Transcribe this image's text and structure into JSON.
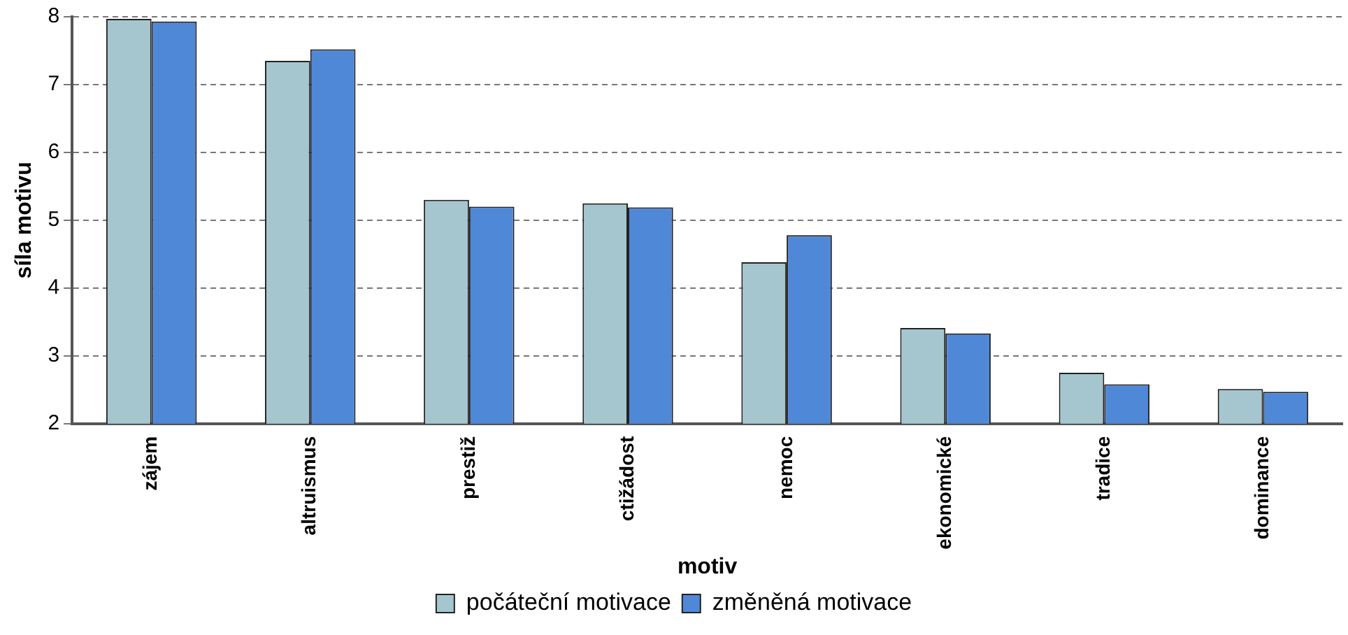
{
  "chart_data": {
    "type": "bar",
    "xlabel": "motiv",
    "ylabel": "síla motivu",
    "categories": [
      "zájem",
      "altruismus",
      "prestiž",
      "ctižádost",
      "nemoc",
      "ekonomické",
      "tradice",
      "dominance"
    ],
    "series": [
      {
        "name": "počáteční motivace",
        "color": "#a6c6cf",
        "values": [
          7.97,
          7.35,
          5.3,
          5.25,
          4.38,
          3.41,
          2.75,
          2.51
        ]
      },
      {
        "name": "změněná motivace",
        "color": "#5088d8",
        "values": [
          7.93,
          7.52,
          5.2,
          5.19,
          4.78,
          3.33,
          2.58,
          2.47
        ]
      }
    ],
    "ylim": [
      2,
      8
    ],
    "yticks": [
      2,
      3,
      4,
      5,
      6,
      7,
      8
    ],
    "grid": "y",
    "legend": "bottom"
  }
}
